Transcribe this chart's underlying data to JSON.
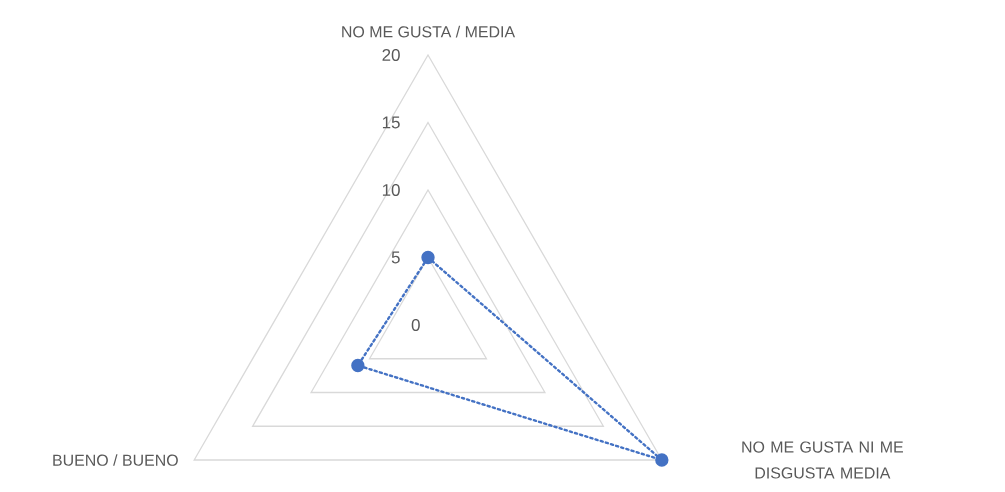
{
  "chart_data": {
    "type": "radar",
    "categories": [
      "NO ME GUSTA / MEDIA",
      "NO ME GUSTA NI ME DISGUSTA MEDIA",
      "BUENO / BUENO"
    ],
    "series": [
      {
        "color": "#4472c4",
        "values": [
          5,
          20,
          6
        ]
      }
    ],
    "ylim": [
      0,
      20
    ],
    "yticks": [
      0,
      5,
      10,
      15,
      20
    ],
    "grid": true,
    "marker": "circle",
    "line_style": "dotted"
  }
}
